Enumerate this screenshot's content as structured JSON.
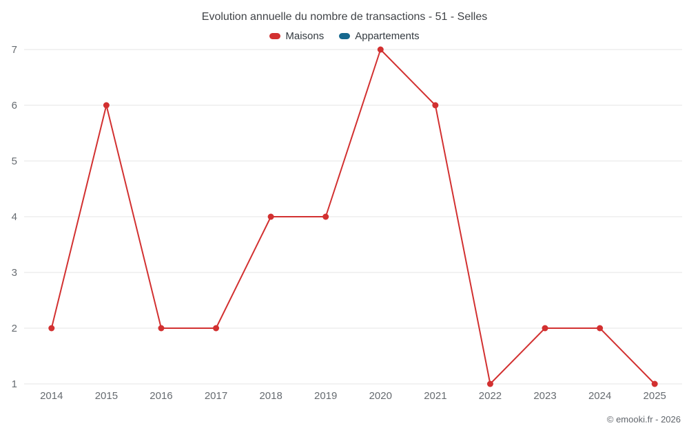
{
  "title": "Evolution annuelle du nombre de transactions - 51 - Selles",
  "legend": [
    {
      "label": "Maisons",
      "color": "#d23030"
    },
    {
      "label": "Appartements",
      "color": "#16688e"
    }
  ],
  "credit": "© emooki.fr - 2026",
  "colors": {
    "grid": "#e6e6e6",
    "tick_label": "#666b70",
    "title_text": "#404347"
  },
  "chart_data": {
    "type": "line",
    "title": "Evolution annuelle du nombre de transactions - 51 - Selles",
    "categories": [
      "2014",
      "2015",
      "2016",
      "2017",
      "2018",
      "2019",
      "2020",
      "2021",
      "2022",
      "2023",
      "2024",
      "2025"
    ],
    "series": [
      {
        "name": "Maisons",
        "color": "#d23030",
        "values": [
          2,
          6,
          2,
          2,
          4,
          4,
          7,
          6,
          1,
          2,
          2,
          1
        ]
      },
      {
        "name": "Appartements",
        "color": "#16688e",
        "values": []
      }
    ],
    "xlabel": "",
    "ylabel": "",
    "ylim": [
      1,
      7
    ],
    "yticks": [
      1,
      2,
      3,
      4,
      5,
      6,
      7
    ],
    "grid": true,
    "legend_position": "top"
  }
}
